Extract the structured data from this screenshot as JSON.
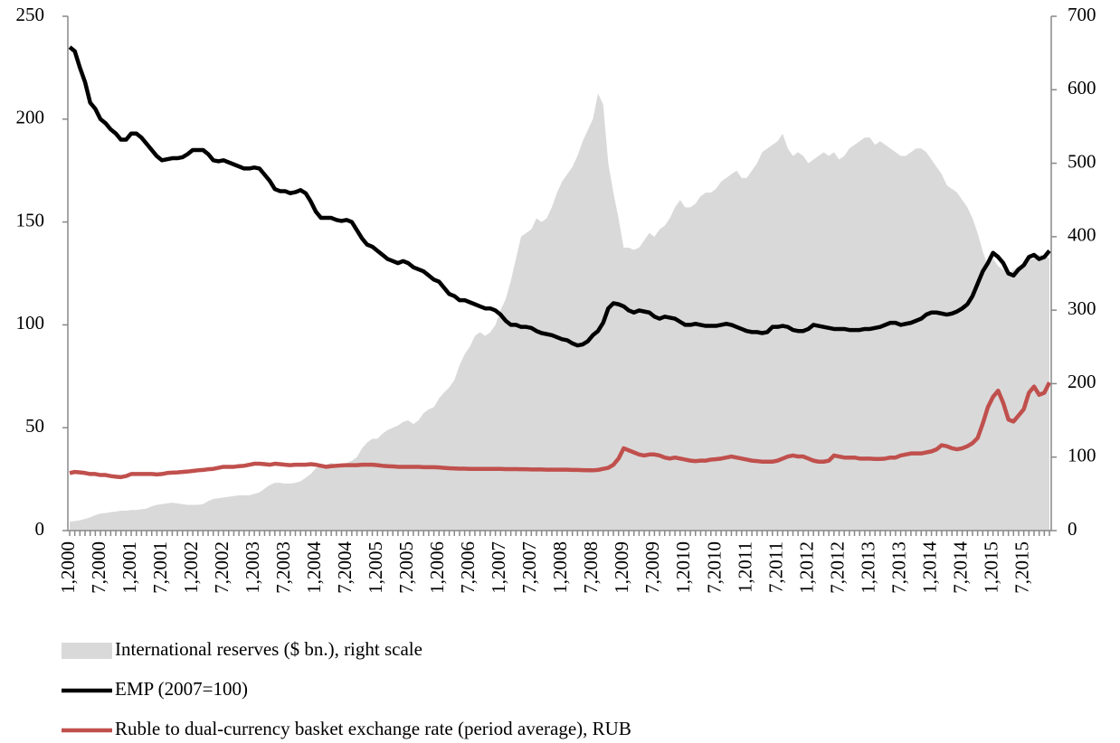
{
  "chart_data": {
    "type": "line",
    "categories": [
      "1,2000",
      null,
      null,
      null,
      null,
      null,
      "7,2000",
      null,
      null,
      null,
      null,
      null,
      "1,2001",
      null,
      null,
      null,
      null,
      null,
      "7,2001",
      null,
      null,
      null,
      null,
      null,
      "1,2002",
      null,
      null,
      null,
      null,
      null,
      "7,2002",
      null,
      null,
      null,
      null,
      null,
      "1,2003",
      null,
      null,
      null,
      null,
      null,
      "7,2003",
      null,
      null,
      null,
      null,
      null,
      "1,2004",
      null,
      null,
      null,
      null,
      null,
      "7,2004",
      null,
      null,
      null,
      null,
      null,
      "1,2005",
      null,
      null,
      null,
      null,
      null,
      "7,2005",
      null,
      null,
      null,
      null,
      null,
      "1,2006",
      null,
      null,
      null,
      null,
      null,
      "7,2006",
      null,
      null,
      null,
      null,
      null,
      "1,2007",
      null,
      null,
      null,
      null,
      null,
      "7,2007",
      null,
      null,
      null,
      null,
      null,
      "1,2008",
      null,
      null,
      null,
      null,
      null,
      "7,2008",
      null,
      null,
      null,
      null,
      null,
      "1,2009",
      null,
      null,
      null,
      null,
      null,
      "7,2009",
      null,
      null,
      null,
      null,
      null,
      "1,2010",
      null,
      null,
      null,
      null,
      null,
      "7,2010",
      null,
      null,
      null,
      null,
      null,
      "1,2011",
      null,
      null,
      null,
      null,
      null,
      "7,2011",
      null,
      null,
      null,
      null,
      null,
      "1,2012",
      null,
      null,
      null,
      null,
      null,
      "7,2012",
      null,
      null,
      null,
      null,
      null,
      "1,2013",
      null,
      null,
      null,
      null,
      null,
      "7,2013",
      null,
      null,
      null,
      null,
      null,
      "1,2014",
      null,
      null,
      null,
      null,
      null,
      "7,2014",
      null,
      null,
      null,
      null,
      null,
      "1,2015",
      null,
      null,
      null,
      null,
      null,
      "7,2015",
      null,
      null,
      null,
      null,
      null
    ],
    "series": [
      {
        "name": "International reserves ($ bn.), right scale",
        "type": "area",
        "axis": "y2",
        "color": "#d9d9d9",
        "values": [
          12,
          13,
          14,
          16,
          18,
          21,
          23,
          24,
          25,
          26,
          27,
          27,
          28,
          28,
          29,
          30,
          33,
          35,
          36,
          37,
          38,
          37,
          36,
          35,
          35,
          35,
          36,
          40,
          43,
          44,
          45,
          46,
          47,
          48,
          48,
          48,
          50,
          52,
          57,
          62,
          65,
          65,
          64,
          64,
          65,
          67,
          72,
          77,
          85,
          88,
          90,
          92,
          90,
          90,
          92,
          95,
          100,
          112,
          120,
          125,
          125,
          132,
          137,
          140,
          143,
          148,
          150,
          145,
          150,
          160,
          165,
          168,
          180,
          188,
          195,
          205,
          225,
          240,
          250,
          265,
          270,
          265,
          270,
          280,
          300,
          315,
          340,
          370,
          400,
          405,
          410,
          425,
          420,
          425,
          440,
          460,
          475,
          485,
          495,
          510,
          530,
          545,
          560,
          595,
          580,
          500,
          460,
          425,
          385,
          385,
          382,
          385,
          395,
          405,
          400,
          410,
          415,
          425,
          440,
          450,
          440,
          440,
          445,
          455,
          460,
          460,
          465,
          475,
          480,
          485,
          490,
          480,
          480,
          490,
          500,
          515,
          520,
          525,
          530,
          540,
          520,
          510,
          515,
          510,
          500,
          505,
          510,
          515,
          510,
          515,
          505,
          510,
          520,
          525,
          530,
          535,
          535,
          525,
          530,
          525,
          520,
          515,
          510,
          510,
          515,
          520,
          520,
          515,
          505,
          495,
          485,
          470,
          465,
          460,
          450,
          440,
          425,
          405,
          380,
          360,
          370,
          360,
          355,
          350,
          355,
          360,
          360,
          370,
          370,
          375,
          375,
          370
        ]
      },
      {
        "name": "EMP (2007=100)",
        "type": "line",
        "axis": "y",
        "color": "#000000",
        "values": [
          235,
          233,
          225,
          218,
          208,
          205,
          200,
          198,
          195,
          193,
          190,
          190,
          193,
          193,
          191,
          188,
          185,
          182,
          180,
          180.5,
          181,
          181,
          181.5,
          183,
          185,
          185,
          185,
          183,
          180,
          179.5,
          180,
          179,
          178,
          177,
          176,
          176,
          176.5,
          176,
          173,
          170,
          166,
          165,
          165,
          164,
          164.5,
          165.5,
          164,
          160,
          155,
          152,
          152,
          152,
          151,
          150.5,
          151,
          150,
          146,
          142,
          139,
          138,
          136,
          134,
          132,
          131,
          130,
          131,
          130,
          128,
          127,
          126,
          124,
          122,
          121,
          118,
          115,
          114,
          112,
          112,
          111,
          110,
          109,
          108,
          108,
          107,
          105,
          102,
          100,
          100,
          99,
          99,
          98.5,
          97,
          96,
          95.5,
          95,
          94,
          93,
          92.5,
          91,
          90,
          90.5,
          92,
          95,
          97,
          101,
          108,
          110.5,
          110,
          109,
          107,
          106,
          107,
          106.5,
          106,
          104,
          103,
          104,
          103.5,
          103,
          101.5,
          100,
          100,
          100.5,
          100,
          99.5,
          99.5,
          99.5,
          100,
          100.5,
          100,
          99,
          98,
          97,
          96.5,
          96.5,
          96,
          96.5,
          99,
          99,
          99.5,
          99,
          97.5,
          97,
          97,
          98,
          100,
          99.5,
          99,
          98.5,
          98,
          98,
          98,
          97.5,
          97.5,
          97.5,
          98,
          98,
          98.5,
          99,
          100,
          101,
          101,
          100,
          100.5,
          101,
          102,
          103,
          105,
          106,
          106,
          105.5,
          105,
          105.5,
          106.5,
          108,
          110,
          114,
          120,
          126,
          130,
          135,
          133,
          130,
          125,
          124,
          127,
          129,
          133,
          134,
          132,
          133,
          136
        ]
      },
      {
        "name": "Ruble to dual-currency basket exchange rate (period average), RUB",
        "type": "line",
        "axis": "y",
        "color": "#c0504d",
        "values": [
          28,
          28.5,
          28.3,
          28,
          27.5,
          27.5,
          27,
          27,
          26.5,
          26.2,
          26,
          26.5,
          27.5,
          27.5,
          27.5,
          27.5,
          27.5,
          27.3,
          27.5,
          28,
          28.2,
          28.3,
          28.5,
          28.7,
          29,
          29.3,
          29.5,
          29.8,
          30,
          30.5,
          31,
          31,
          31,
          31.3,
          31.5,
          32,
          32.5,
          32.5,
          32.3,
          32,
          32.5,
          32.3,
          32,
          31.8,
          32,
          32,
          32,
          32.3,
          32,
          31.5,
          31,
          31.3,
          31.5,
          31.7,
          31.8,
          31.8,
          31.8,
          32,
          32,
          32,
          31.8,
          31.5,
          31.3,
          31.2,
          31,
          31,
          31,
          31,
          31,
          30.8,
          30.8,
          30.8,
          30.7,
          30.5,
          30.3,
          30.2,
          30.1,
          30.1,
          30,
          30,
          30,
          30,
          30,
          30,
          30,
          29.9,
          29.9,
          29.9,
          29.8,
          29.8,
          29.7,
          29.7,
          29.7,
          29.6,
          29.6,
          29.6,
          29.6,
          29.6,
          29.5,
          29.5,
          29.4,
          29.3,
          29.3,
          29.5,
          30,
          30.5,
          32,
          35,
          40,
          39,
          38,
          37,
          36.5,
          37,
          37,
          36.5,
          35.5,
          35,
          35.5,
          35,
          34.5,
          34,
          33.8,
          34,
          34,
          34.5,
          34.7,
          35,
          35.5,
          36,
          35.5,
          35,
          34.5,
          34,
          33.8,
          33.5,
          33.5,
          33.5,
          34,
          35,
          36,
          36.5,
          36,
          36,
          35,
          34,
          33.5,
          33.5,
          34,
          36.5,
          36,
          35.5,
          35.5,
          35.5,
          35,
          35,
          35,
          34.8,
          34.8,
          35,
          35.5,
          35.5,
          36.5,
          37,
          37.5,
          37.5,
          37.5,
          38,
          38.5,
          39.5,
          41.5,
          41,
          40,
          39.5,
          40,
          41,
          42.5,
          45,
          52,
          60,
          65,
          68,
          62,
          54,
          53,
          56,
          59,
          67,
          70,
          66,
          67,
          72
        ]
      }
    ],
    "ylim": [
      0,
      250
    ],
    "yticks": [
      0,
      50,
      100,
      150,
      200,
      250
    ],
    "y2lim": [
      0,
      700
    ],
    "y2ticks": [
      0,
      100,
      200,
      300,
      400,
      500,
      600,
      700
    ],
    "grid": false,
    "legend": "bottom"
  }
}
